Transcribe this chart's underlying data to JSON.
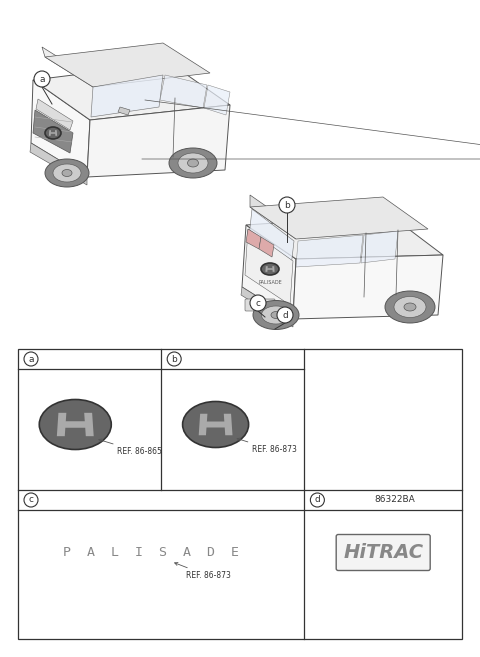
{
  "bg_color": "#ffffff",
  "line_color": "#555555",
  "table_border_color": "#333333",
  "ref_text_a": "REF. 86-865",
  "ref_text_b": "REF. 86-873",
  "ref_text_c": "REF. 86-873",
  "part_num_d": "86322BA",
  "palisade_text": "P  A  L  I  S  A  D  E",
  "hitrac_text": "HiTRAC",
  "cell_labels": [
    "a",
    "b",
    "c",
    "d"
  ]
}
